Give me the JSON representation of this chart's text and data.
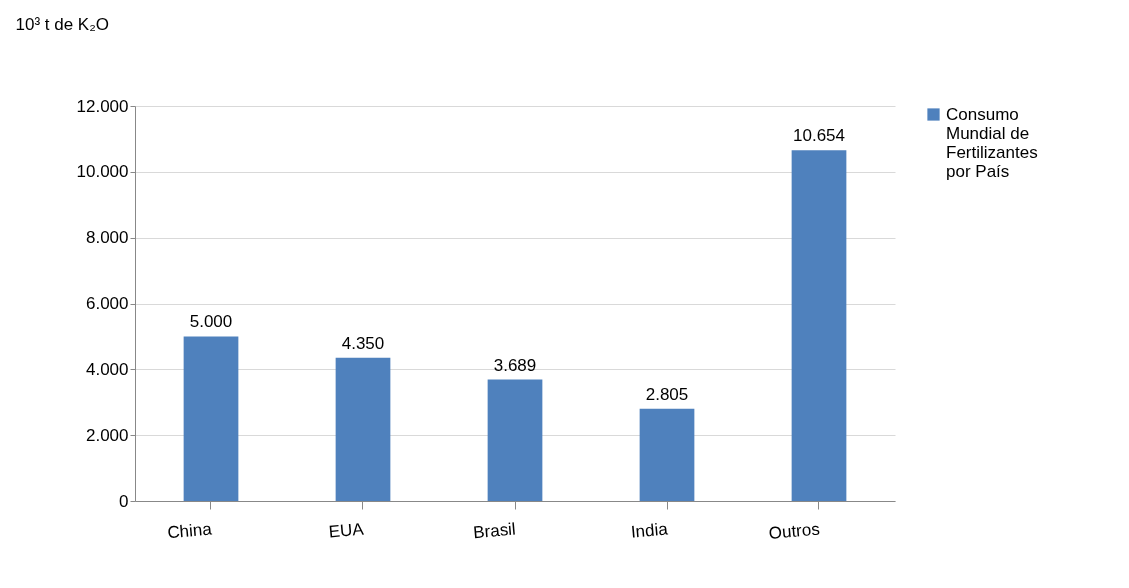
{
  "chart_data": {
    "type": "bar",
    "ylabel": "10³ t de K₂O",
    "categories": [
      "China",
      "EUA",
      "Brasil",
      "India",
      "Outros"
    ],
    "series": [
      {
        "name": "Consumo Mundial de Fertilizantes por País",
        "color": "#4f81bd",
        "values": [
          5000,
          4350,
          3689,
          2805,
          10654
        ],
        "value_labels": [
          "5.000",
          "4.350",
          "3.689",
          "2.805",
          "10.654"
        ]
      }
    ],
    "ylim": [
      0,
      12000
    ],
    "yticks": [
      {
        "value": 0,
        "label": "0"
      },
      {
        "value": 2000,
        "label": "2.000"
      },
      {
        "value": 4000,
        "label": "4.000"
      },
      {
        "value": 6000,
        "label": "6.000"
      },
      {
        "value": 8000,
        "label": "8.000"
      },
      {
        "value": 10000,
        "label": "10.000"
      },
      {
        "value": 12000,
        "label": "12.000"
      }
    ],
    "grid": "y",
    "legend": "top right"
  }
}
